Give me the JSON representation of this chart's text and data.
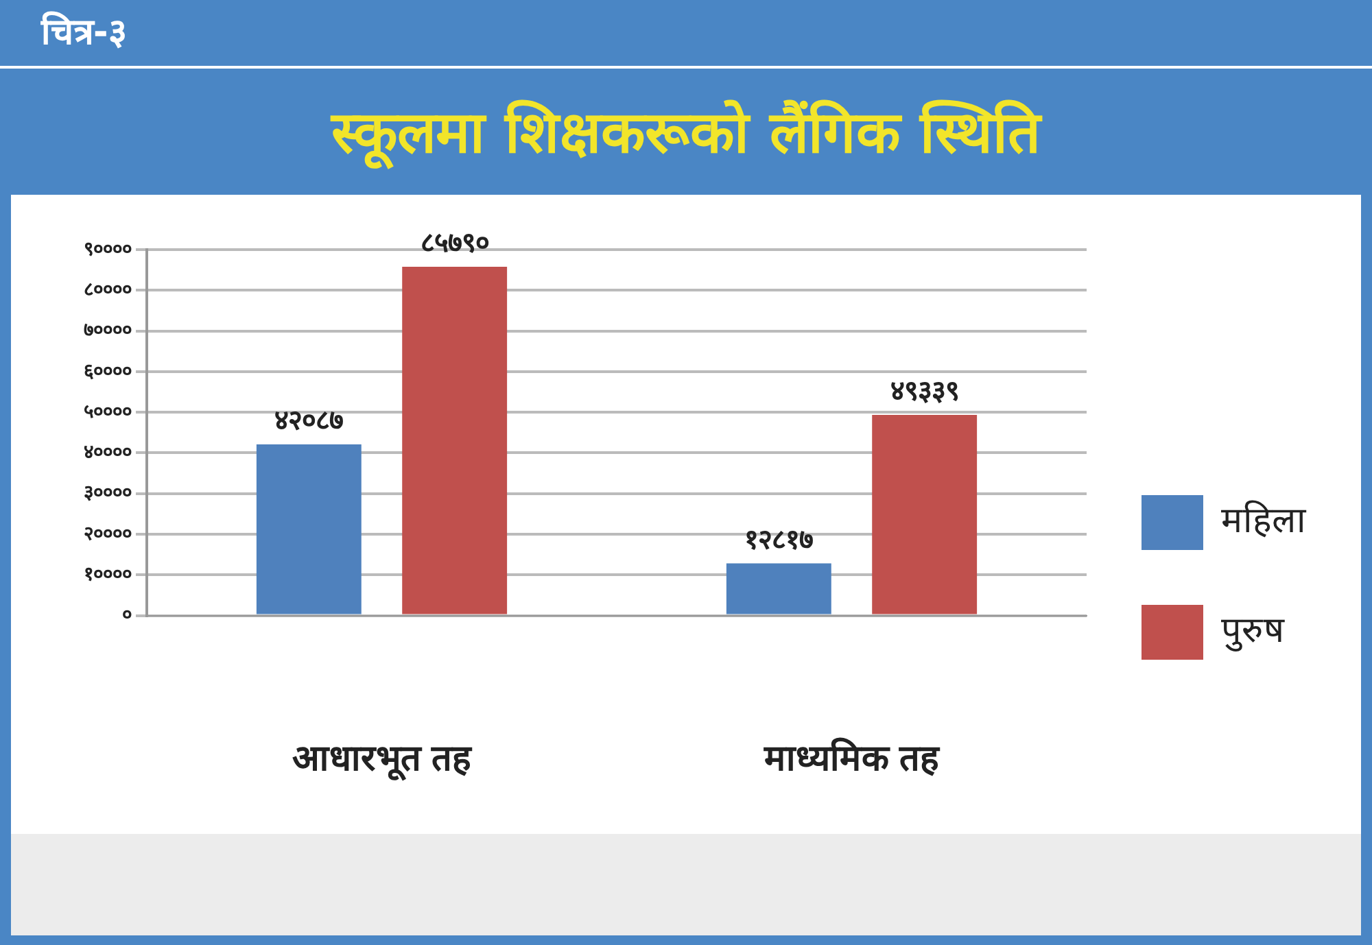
{
  "chart_data": {
    "type": "bar",
    "title": "स्कूलमा शिक्षकरूको लैंगिक स्थिति",
    "annotations": [
      "चित्र-३"
    ],
    "categories": [
      "आधारभूत तह",
      "माध्यमिक तह"
    ],
    "series": [
      {
        "name": "महिला",
        "color": "#4f81bd",
        "values": [
          42087,
          12817
        ],
        "value_labels": [
          "४२०८७",
          "१२८१७"
        ]
      },
      {
        "name": "पुरुष",
        "color": "#c0504d",
        "values": [
          85790,
          49339
        ],
        "value_labels": [
          "८५७९०",
          "४९३३९"
        ]
      }
    ],
    "ylim": [
      0,
      90000
    ],
    "yticks": [
      {
        "value": 0,
        "label": "०"
      },
      {
        "value": 10000,
        "label": "१००००"
      },
      {
        "value": 20000,
        "label": "२००००"
      },
      {
        "value": 30000,
        "label": "३००००"
      },
      {
        "value": 40000,
        "label": "४००००"
      },
      {
        "value": 50000,
        "label": "५००००"
      },
      {
        "value": 60000,
        "label": "६००००"
      },
      {
        "value": 70000,
        "label": "७००००"
      },
      {
        "value": 80000,
        "label": "८००००"
      },
      {
        "value": 90000,
        "label": "९००००"
      }
    ],
    "grid": "y",
    "legend": "right"
  }
}
